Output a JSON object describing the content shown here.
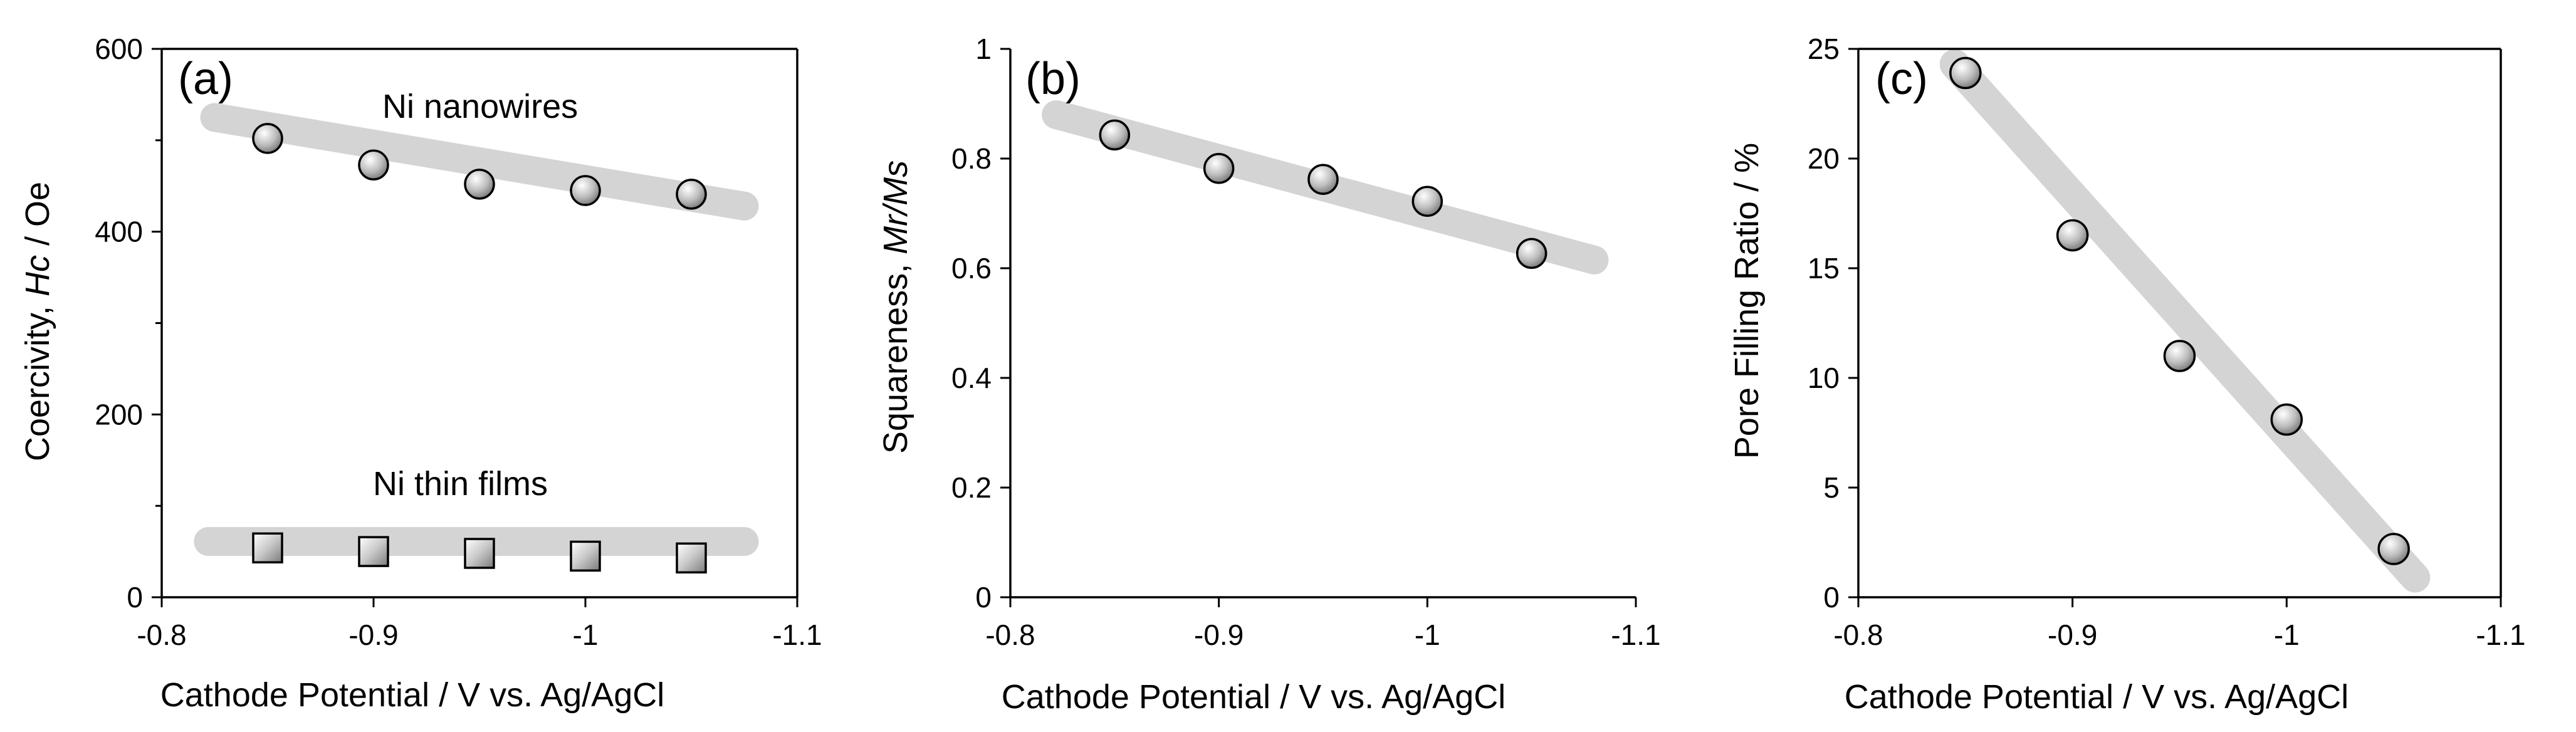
{
  "colors": {
    "trend_band": "#d4d4d4",
    "marker_light": "#ffffff",
    "marker_dark": "#6e6e6e",
    "axis": "#000000"
  },
  "chart_data": [
    {
      "type": "scatter",
      "panel_label": "(a)",
      "xlabel": "Cathode Potential / V vs. Ag/AgCl",
      "ylabel_parts": [
        "Coercivity, ",
        "Hc",
        " / Oe"
      ],
      "xlim": [
        -0.8,
        -1.1
      ],
      "ylim": [
        0,
        600
      ],
      "xticks": [
        -0.8,
        -0.9,
        -1.0,
        -1.1
      ],
      "xtick_labels": [
        "-0.8",
        "-0.9",
        "-1",
        "-1.1"
      ],
      "yticks": [
        0,
        200,
        400,
        600
      ],
      "ytick_labels": [
        "0",
        "200",
        "400",
        "600"
      ],
      "yminor_ticks": [
        100,
        300,
        500
      ],
      "frame": "closed",
      "series": [
        {
          "name": "Ni nanowires",
          "marker": "circle",
          "x": [
            -0.85,
            -0.9,
            -0.95,
            -1.0,
            -1.05
          ],
          "y": [
            502,
            473,
            452,
            445,
            441
          ],
          "trend": {
            "x": [
              -0.825,
              -1.075
            ],
            "y": [
              525,
              428
            ]
          }
        },
        {
          "name": "Ni thin films",
          "marker": "square",
          "x": [
            -0.85,
            -0.9,
            -0.95,
            -1.0,
            -1.05
          ],
          "y": [
            54,
            50,
            48,
            45,
            43
          ],
          "trend": {
            "x": [
              -0.822,
              -1.075
            ],
            "y": [
              61,
              61
            ]
          }
        }
      ]
    },
    {
      "type": "scatter",
      "panel_label": "(b)",
      "xlabel": "Cathode Potential / V vs. Ag/AgCl",
      "ylabel_parts": [
        "Squareness, ",
        "Mr/Ms",
        ""
      ],
      "xlim": [
        -0.8,
        -1.1
      ],
      "ylim": [
        0,
        1
      ],
      "xticks": [
        -0.8,
        -0.9,
        -1.0,
        -1.1
      ],
      "xtick_labels": [
        "-0.8",
        "-0.9",
        "-1",
        "-1.1"
      ],
      "yticks": [
        0,
        0.2,
        0.4,
        0.6,
        0.8,
        1
      ],
      "ytick_labels": [
        "0",
        "0.2",
        "0.4",
        "0.6",
        "0.8",
        "1"
      ],
      "yminor_ticks": [],
      "frame": "open",
      "series": [
        {
          "name": "Squareness",
          "marker": "circle",
          "x": [
            -0.85,
            -0.9,
            -0.95,
            -1.0,
            -1.05
          ],
          "y": [
            0.843,
            0.782,
            0.762,
            0.722,
            0.627
          ],
          "trend": {
            "x": [
              -0.822,
              -1.08
            ],
            "y": [
              0.88,
              0.615
            ]
          }
        }
      ]
    },
    {
      "type": "scatter",
      "panel_label": "(c)",
      "xlabel": "Cathode Potential / V vs. Ag/AgCl",
      "ylabel_parts": [
        "Pore Filling Ratio / %",
        "",
        ""
      ],
      "xlim": [
        -0.8,
        -1.1
      ],
      "ylim": [
        0,
        25
      ],
      "xticks": [
        -0.8,
        -0.9,
        -1.0,
        -1.1
      ],
      "xtick_labels": [
        "-0.8",
        "-0.9",
        "-1",
        "-1.1"
      ],
      "yticks": [
        0,
        5,
        10,
        15,
        20,
        25
      ],
      "ytick_labels": [
        "0",
        "5",
        "10",
        "15",
        "20",
        "25"
      ],
      "yminor_ticks": [],
      "frame": "closed",
      "series": [
        {
          "name": "Pore filling ratio",
          "marker": "circle",
          "x": [
            -0.85,
            -0.9,
            -0.95,
            -1.0,
            -1.05
          ],
          "y": [
            23.9,
            16.5,
            11.0,
            8.1,
            2.2
          ],
          "trend": {
            "x": [
              -0.845,
              -1.06
            ],
            "y": [
              24.3,
              0.9
            ]
          }
        }
      ]
    }
  ]
}
